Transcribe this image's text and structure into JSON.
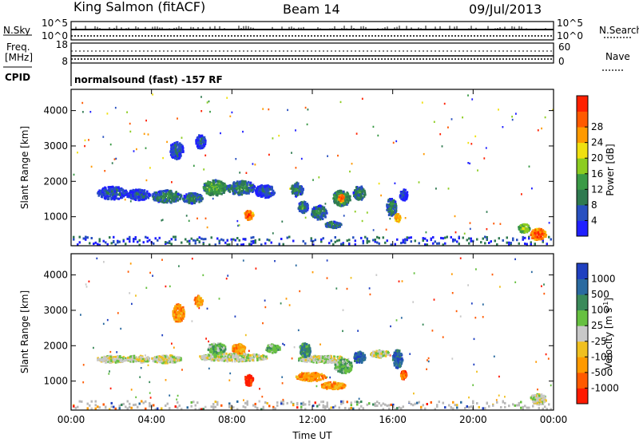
{
  "header": {
    "station": "King Salmon (fitACF)",
    "beam": "Beam 14",
    "date": "09/Jul/2013"
  },
  "status_panel": {
    "left_labels": [
      "N.Sky",
      "Freq.",
      "[MHz]",
      "CPID"
    ],
    "right_labels": [
      "N.Search",
      "Nave"
    ],
    "nsky_ticks": [
      "10^5",
      "10^0"
    ],
    "nsearch_ticks": [
      "10^5",
      "10^0"
    ],
    "freq_ticks": [
      "18",
      "8"
    ],
    "nave_ticks": [
      "60",
      "0"
    ],
    "cpid_text": "normalsound (fast) -157 RF"
  },
  "colors": {
    "power_scale": [
      "#1f1fff",
      "#2850c0",
      "#2f7a50",
      "#3a9a46",
      "#8ccc20",
      "#f0e010",
      "#ff9a00",
      "#ff5a00",
      "#ff2000"
    ],
    "velocity_scale": [
      "#2040c0",
      "#2a6aa0",
      "#3a8a5a",
      "#66c040",
      "#c8c8c8",
      "#f0c020",
      "#ff9a00",
      "#ff5a00",
      "#ff1a00"
    ],
    "ground_gray": "#b8b8b8"
  },
  "chart_data": [
    {
      "type": "heatmap",
      "name": "power",
      "ylabel": "Slant Range [km]",
      "x_ticks": [
        "00:00",
        "04:00",
        "08:00",
        "12:00",
        "16:00",
        "20:00",
        "00:00"
      ],
      "x_range_hours": [
        0,
        24
      ],
      "y_ticks": [
        1000,
        2000,
        3000,
        4000
      ],
      "y_range_km": [
        180,
        4600
      ],
      "colorbar": {
        "label": "Power [dB]",
        "ticks": [
          "4",
          "8",
          "12",
          "16",
          "20",
          "24",
          "28"
        ]
      },
      "blobs": [
        {
          "t": 2.0,
          "dt": 1.5,
          "r": 1700,
          "dr": 180,
          "lvl": 2
        },
        {
          "t": 3.3,
          "dt": 1.2,
          "r": 1650,
          "dr": 150,
          "lvl": 2
        },
        {
          "t": 4.7,
          "dt": 1.5,
          "r": 1600,
          "dr": 180,
          "lvl": 3
        },
        {
          "t": 6.0,
          "dt": 1.0,
          "r": 1550,
          "dr": 150,
          "lvl": 3
        },
        {
          "t": 7.1,
          "dt": 1.2,
          "r": 1850,
          "dr": 220,
          "lvl": 4
        },
        {
          "t": 8.4,
          "dt": 1.4,
          "r": 1850,
          "dr": 200,
          "lvl": 3
        },
        {
          "t": 9.6,
          "dt": 1.0,
          "r": 1750,
          "dr": 180,
          "lvl": 2
        },
        {
          "t": 8.8,
          "dt": 0.45,
          "r": 1080,
          "dr": 140,
          "lvl": 8
        },
        {
          "t": 5.2,
          "dt": 0.7,
          "r": 2900,
          "dr": 240,
          "lvl": 2
        },
        {
          "t": 6.4,
          "dt": 0.5,
          "r": 3150,
          "dr": 200,
          "lvl": 2
        },
        {
          "t": 11.2,
          "dt": 0.6,
          "r": 1800,
          "dr": 200,
          "lvl": 3
        },
        {
          "t": 11.5,
          "dt": 0.5,
          "r": 1300,
          "dr": 160,
          "lvl": 3
        },
        {
          "t": 12.3,
          "dt": 0.8,
          "r": 1150,
          "dr": 200,
          "lvl": 3
        },
        {
          "t": 13.4,
          "dt": 0.9,
          "r": 1550,
          "dr": 220,
          "lvl": 4
        },
        {
          "t": 14.3,
          "dt": 0.6,
          "r": 1700,
          "dr": 200,
          "lvl": 3
        },
        {
          "t": 13.4,
          "dt": 0.3,
          "r": 1550,
          "dr": 100,
          "lvl": 8
        },
        {
          "t": 13.0,
          "dt": 0.8,
          "r": 800,
          "dr": 90,
          "lvl": 3
        },
        {
          "t": 15.9,
          "dt": 0.5,
          "r": 1300,
          "dr": 260,
          "lvl": 3
        },
        {
          "t": 16.5,
          "dt": 0.4,
          "r": 1650,
          "dr": 160,
          "lvl": 2
        },
        {
          "t": 16.2,
          "dt": 0.3,
          "r": 1000,
          "dr": 120,
          "lvl": 7
        },
        {
          "t": 23.2,
          "dt": 0.8,
          "r": 530,
          "dr": 160,
          "lvl": 8
        },
        {
          "t": 22.5,
          "dt": 0.6,
          "r": 700,
          "dr": 120,
          "lvl": 5
        }
      ]
    },
    {
      "type": "heatmap",
      "name": "velocity",
      "ylabel": "Slant Range [km]",
      "xlabel": "Time UT",
      "x_ticks": [
        "00:00",
        "04:00",
        "08:00",
        "12:00",
        "16:00",
        "20:00",
        "00:00"
      ],
      "x_range_hours": [
        0,
        24
      ],
      "y_ticks": [
        1000,
        2000,
        3000,
        4000
      ],
      "y_range_km": [
        180,
        4600
      ],
      "colorbar": {
        "label": "Velocity [m s",
        "label_exp": "-1",
        "label_close": "]",
        "ticks": [
          "1000",
          "500",
          "100",
          "25",
          "-25",
          "-100",
          "-500",
          "-1000"
        ]
      },
      "blobs": [
        {
          "t": 2.0,
          "dt": 1.5,
          "r": 1650,
          "dr": 100,
          "lvl": 4
        },
        {
          "t": 3.3,
          "dt": 1.2,
          "r": 1650,
          "dr": 100,
          "lvl": 4
        },
        {
          "t": 4.7,
          "dt": 1.5,
          "r": 1650,
          "dr": 110,
          "lvl": 4
        },
        {
          "t": 8.0,
          "dt": 3.5,
          "r": 1700,
          "dr": 110,
          "lvl": 4
        },
        {
          "t": 12.5,
          "dt": 2.5,
          "r": 1650,
          "dr": 100,
          "lvl": 4
        },
        {
          "t": 15.3,
          "dt": 1.0,
          "r": 1800,
          "dr": 100,
          "lvl": 4
        },
        {
          "t": 8.8,
          "dt": 0.45,
          "r": 1050,
          "dr": 150,
          "lvl": 8
        },
        {
          "t": 5.3,
          "dt": 0.6,
          "r": 2950,
          "dr": 260,
          "lvl": 6
        },
        {
          "t": 6.3,
          "dt": 0.4,
          "r": 3300,
          "dr": 160,
          "lvl": 6
        },
        {
          "t": 7.2,
          "dt": 0.9,
          "r": 1950,
          "dr": 150,
          "lvl": 3
        },
        {
          "t": 8.3,
          "dt": 0.7,
          "r": 1950,
          "dr": 130,
          "lvl": 6
        },
        {
          "t": 10.0,
          "dt": 0.7,
          "r": 1950,
          "dr": 120,
          "lvl": 3
        },
        {
          "t": 11.6,
          "dt": 0.6,
          "r": 1900,
          "dr": 200,
          "lvl": 2
        },
        {
          "t": 11.9,
          "dt": 1.5,
          "r": 1150,
          "dr": 120,
          "lvl": 6
        },
        {
          "t": 13.0,
          "dt": 1.2,
          "r": 900,
          "dr": 100,
          "lvl": 6
        },
        {
          "t": 13.5,
          "dt": 0.9,
          "r": 1450,
          "dr": 200,
          "lvl": 3
        },
        {
          "t": 14.3,
          "dt": 0.6,
          "r": 1700,
          "dr": 160,
          "lvl": 1
        },
        {
          "t": 16.2,
          "dt": 0.5,
          "r": 1650,
          "dr": 260,
          "lvl": 1
        },
        {
          "t": 16.5,
          "dt": 0.3,
          "r": 1200,
          "dr": 120,
          "lvl": 7
        },
        {
          "t": 23.2,
          "dt": 0.8,
          "r": 520,
          "dr": 150,
          "lvl": 4
        }
      ]
    }
  ]
}
